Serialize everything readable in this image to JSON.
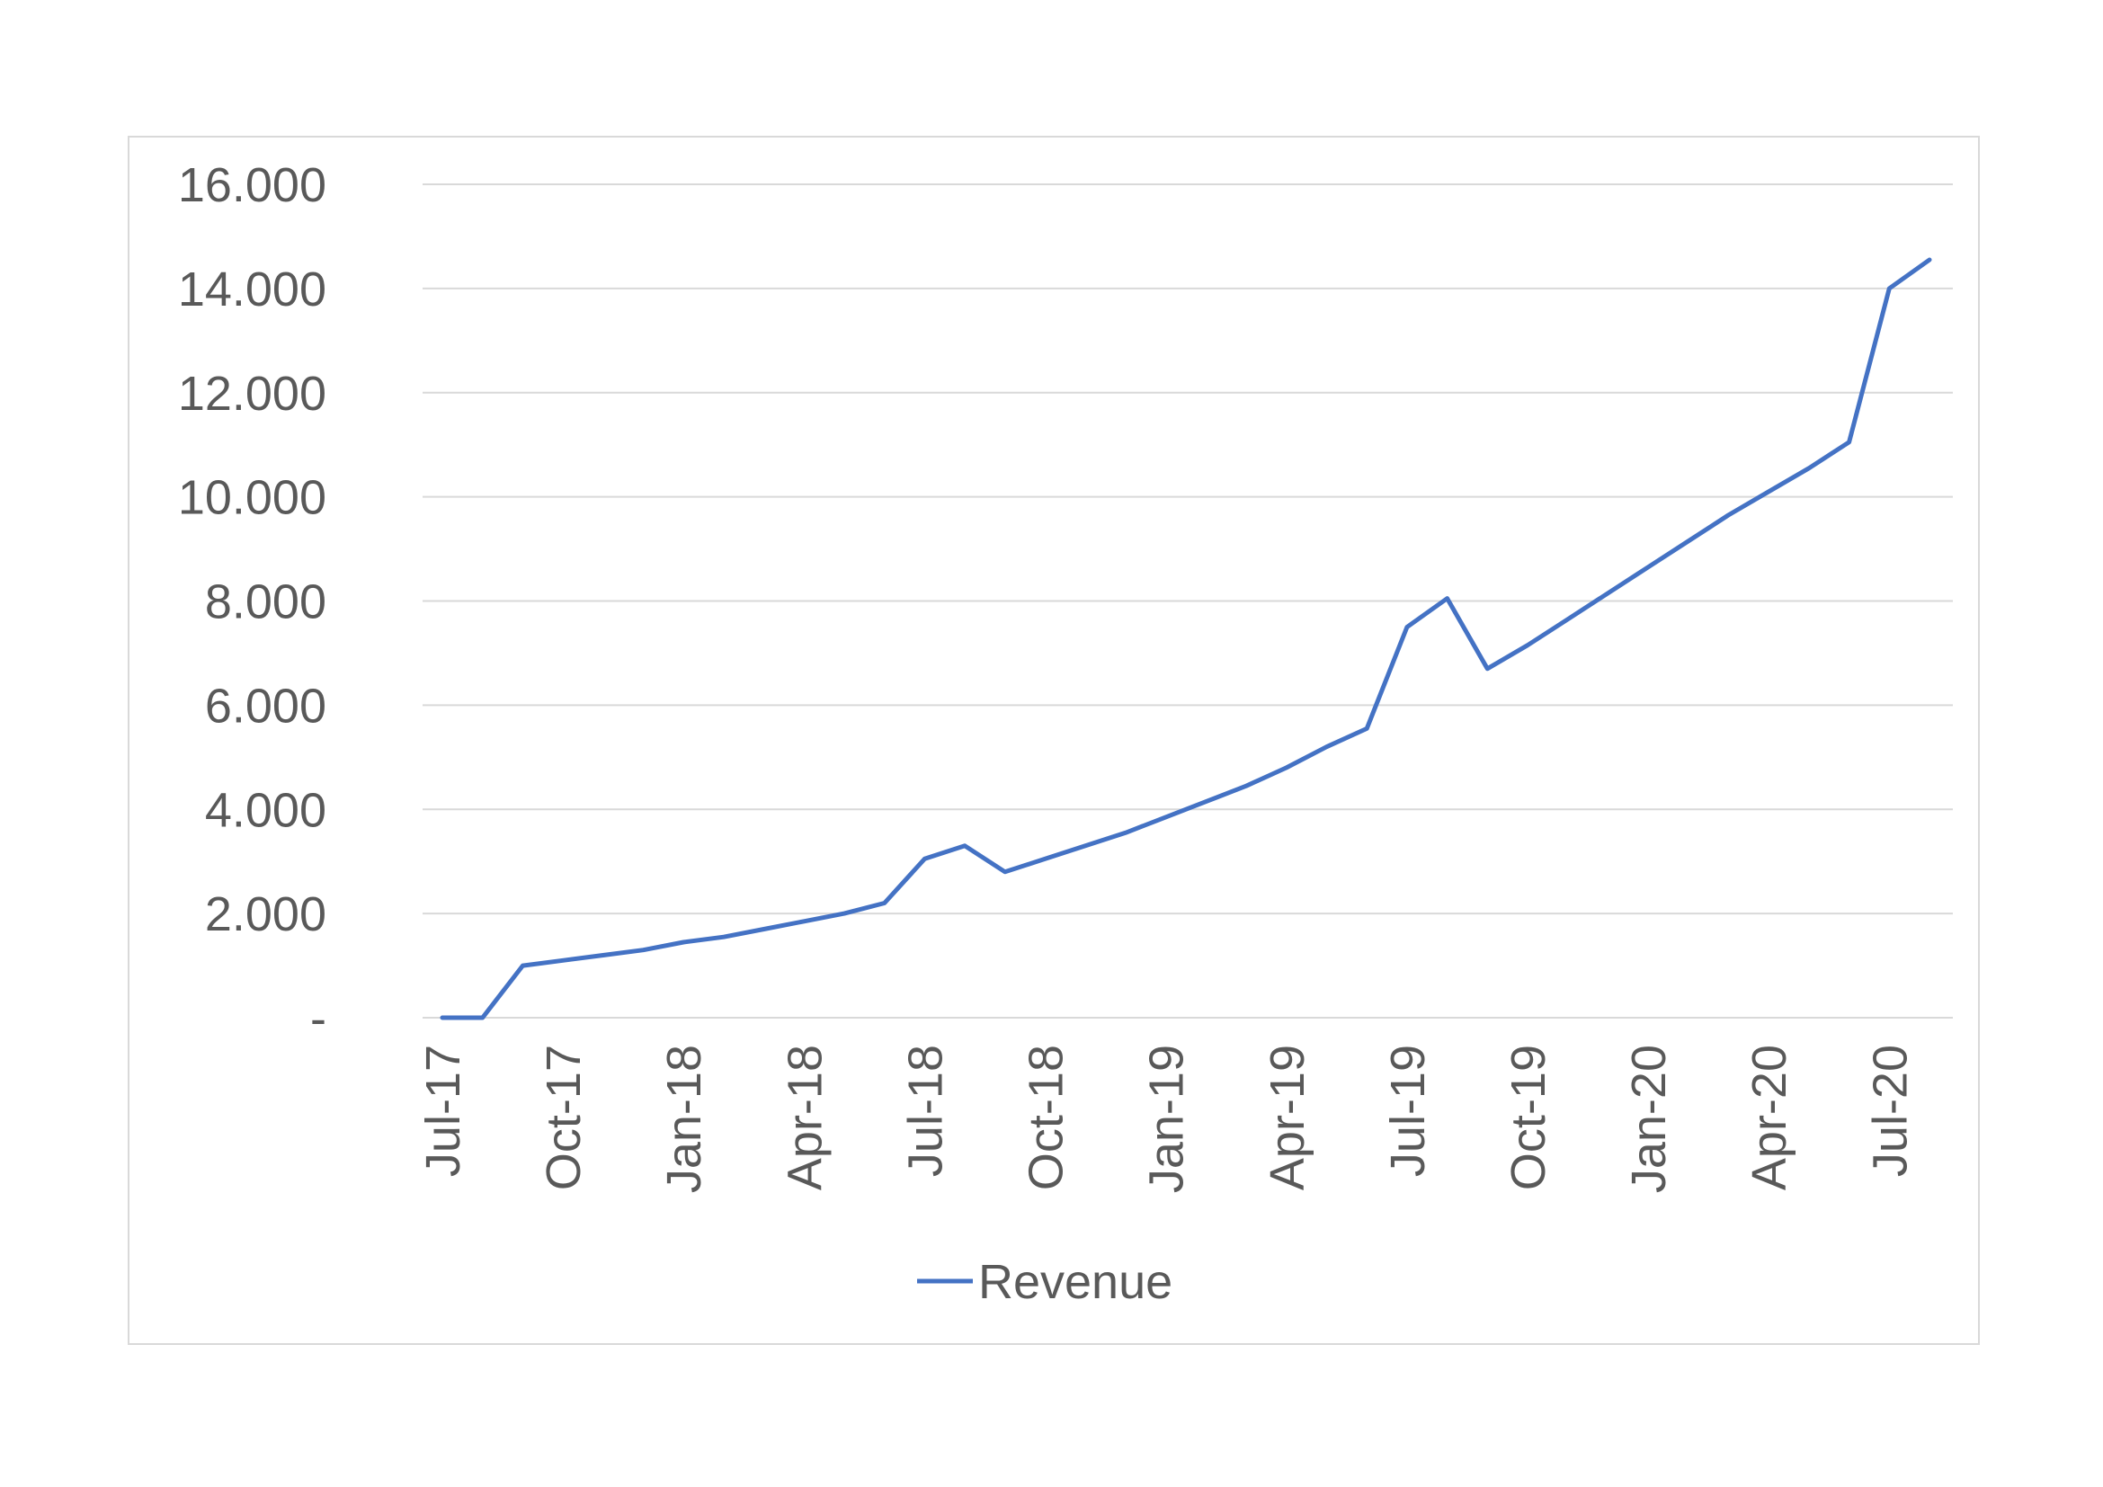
{
  "chart_data": {
    "type": "line",
    "title": "",
    "xlabel": "",
    "ylabel": "",
    "ylim": [
      0,
      16000
    ],
    "ytick_values": [
      0,
      2000,
      4000,
      6000,
      8000,
      10000,
      12000,
      14000,
      16000
    ],
    "ytick_labels": [
      "-",
      "2.000",
      "4.000",
      "6.000",
      "8.000",
      "10.000",
      "12.000",
      "14.000",
      "16.000"
    ],
    "xtick_labels": [
      "Jul-17",
      "Oct-17",
      "Jan-18",
      "Apr-18",
      "Jul-18",
      "Oct-18",
      "Jan-19",
      "Apr-19",
      "Jul-19",
      "Oct-19",
      "Jan-20",
      "Apr-20",
      "Jul-20"
    ],
    "grid": true,
    "legend_position": "bottom",
    "x": [
      "Jul-17",
      "Aug-17",
      "Sep-17",
      "Oct-17",
      "Nov-17",
      "Dec-17",
      "Jan-18",
      "Feb-18",
      "Mar-18",
      "Apr-18",
      "May-18",
      "Jun-18",
      "Jul-18",
      "Aug-18",
      "Sep-18",
      "Oct-18",
      "Nov-18",
      "Dec-18",
      "Jan-19",
      "Feb-19",
      "Mar-19",
      "Apr-19",
      "May-19",
      "Jun-19",
      "Jul-19",
      "Aug-19",
      "Sep-19",
      "Oct-19",
      "Nov-19",
      "Dec-19",
      "Jan-20",
      "Feb-20",
      "Mar-20",
      "Apr-20",
      "May-20",
      "Jun-20",
      "Jul-20",
      "Aug-20"
    ],
    "series": [
      {
        "name": "Revenue",
        "color": "#4472c4",
        "values": [
          0,
          0,
          1000,
          1100,
          1200,
          1300,
          1450,
          1550,
          1700,
          1850,
          2000,
          2200,
          3050,
          3300,
          2800,
          3050,
          3300,
          3550,
          3850,
          4150,
          4450,
          4800,
          5200,
          5550,
          7500,
          8050,
          6700,
          7150,
          7650,
          8150,
          8650,
          9150,
          9650,
          10100,
          10550,
          11050,
          14000,
          14550
        ]
      }
    ]
  }
}
